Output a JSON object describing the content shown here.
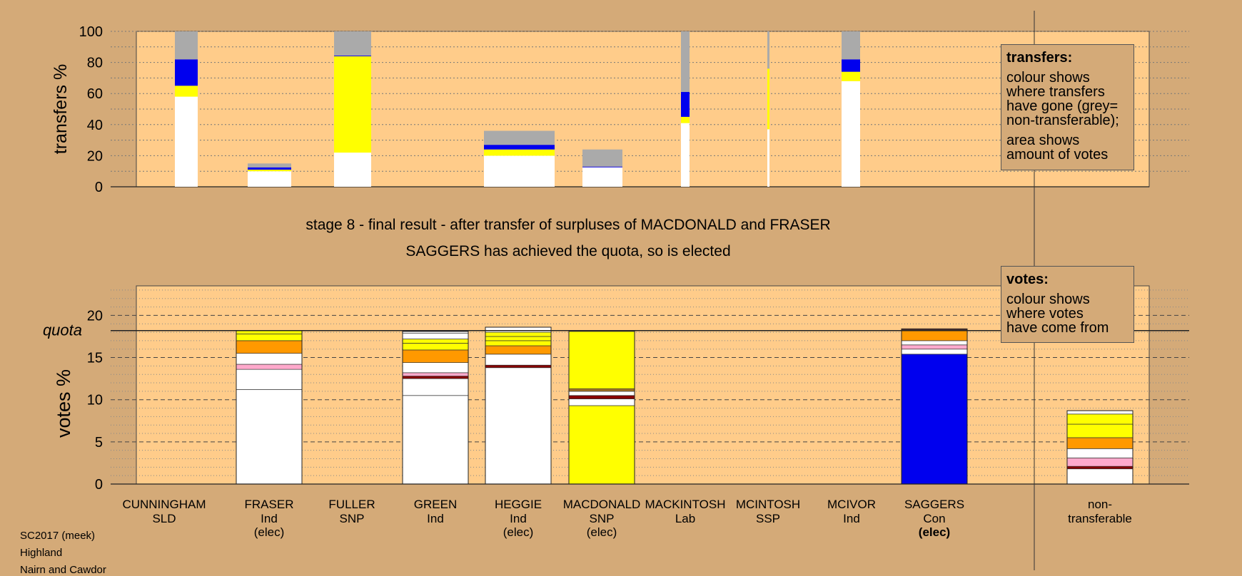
{
  "transfers_legend": {
    "title": "transfers:",
    "lines": [
      "colour shows",
      "where transfers",
      "have gone (grey=",
      "non-transferable);",
      "area shows",
      "amount of votes"
    ]
  },
  "votes_legend": {
    "title": "votes:",
    "lines": [
      "colour shows",
      "where votes",
      "have come from"
    ]
  },
  "stage_text": "stage 8 - final result - after transfer of surpluses of MACDONALD and FRASER",
  "elected_text": "SAGGERS has achieved the quota, so is elected",
  "quota_label": "quota",
  "footer": [
    "SC2017 (meek)",
    "Highland",
    "Nairn and Cawdor"
  ],
  "colors": {
    "white": "#ffffff",
    "yellow": "#ffff00",
    "blue": "#0000ee",
    "grey": "#aaaaaa",
    "orange": "#ff9900",
    "pink": "#ffaacc",
    "darkred": "#880000",
    "brown": "#aa7722",
    "plot_bg": "#ffcc8a",
    "page_bg": "#d4aa78"
  },
  "chart_data": [
    {
      "type": "bar",
      "name": "transfers",
      "ylabel": "transfers %",
      "ylim": [
        0,
        100
      ],
      "yticks": [
        0,
        20,
        40,
        60,
        80,
        100
      ],
      "bars": [
        {
          "segments": [
            {
              "color": "white",
              "v": 58
            },
            {
              "color": "yellow",
              "v": 7
            },
            {
              "color": "blue",
              "v": 17
            },
            {
              "color": "grey",
              "v": 18
            }
          ]
        },
        {
          "segments": [
            {
              "color": "white",
              "v": 10
            },
            {
              "color": "yellow",
              "v": 1
            },
            {
              "color": "blue",
              "v": 1.5
            },
            {
              "color": "grey",
              "v": 2.5
            }
          ]
        },
        {
          "segments": [
            {
              "color": "white",
              "v": 22
            },
            {
              "color": "yellow",
              "v": 62
            },
            {
              "color": "blue",
              "v": 0.5
            },
            {
              "color": "grey",
              "v": 15.5
            }
          ]
        },
        {
          "segments": [
            {
              "color": "white",
              "v": 20
            },
            {
              "color": "yellow",
              "v": 4
            },
            {
              "color": "blue",
              "v": 3
            },
            {
              "color": "grey",
              "v": 9
            }
          ]
        },
        {
          "segments": [
            {
              "color": "white",
              "v": 12.5
            },
            {
              "color": "blue",
              "v": 0.5
            },
            {
              "color": "grey",
              "v": 11
            }
          ]
        },
        {
          "segments": [
            {
              "color": "white",
              "v": 41
            },
            {
              "color": "yellow",
              "v": 4
            },
            {
              "color": "blue",
              "v": 16
            },
            {
              "color": "grey",
              "v": 39
            }
          ]
        },
        {
          "segments": [
            {
              "color": "white",
              "v": 37
            },
            {
              "color": "yellow",
              "v": 39
            },
            {
              "color": "grey",
              "v": 24
            }
          ]
        },
        {
          "segments": [
            {
              "color": "white",
              "v": 68
            },
            {
              "color": "yellow",
              "v": 6
            },
            {
              "color": "blue",
              "v": 8
            },
            {
              "color": "grey",
              "v": 18
            }
          ]
        }
      ]
    },
    {
      "type": "bar",
      "name": "votes",
      "ylabel": "votes %",
      "ylim": [
        0,
        23.5
      ],
      "yticks": [
        0,
        5,
        10,
        15,
        20
      ],
      "quota": 18.2,
      "categories": [
        {
          "name": "CUNNINGHAM",
          "party": "SLD",
          "status": ""
        },
        {
          "name": "FRASER",
          "party": "Ind",
          "status": "(elec)"
        },
        {
          "name": "FULLER",
          "party": "SNP",
          "status": ""
        },
        {
          "name": "GREEN",
          "party": "Ind",
          "status": ""
        },
        {
          "name": "HEGGIE",
          "party": "Ind",
          "status": "(elec)"
        },
        {
          "name": "MACDONALD",
          "party": "SNP",
          "status": "(elec)"
        },
        {
          "name": "MACKINTOSH",
          "party": "Lab",
          "status": ""
        },
        {
          "name": "MCINTOSH",
          "party": "SSP",
          "status": ""
        },
        {
          "name": "MCIVOR",
          "party": "Ind",
          "status": ""
        },
        {
          "name": "SAGGERS",
          "party": "Con",
          "status": "(elec)"
        },
        {
          "name": "non-",
          "party": "transferable",
          "status": ""
        }
      ],
      "bars": [
        {
          "segments": []
        },
        {
          "segments": [
            {
              "color": "white",
              "v": 11.2
            },
            {
              "color": "white",
              "v": 2.4
            },
            {
              "color": "pink",
              "v": 0.6
            },
            {
              "color": "white",
              "v": 1.3
            },
            {
              "color": "orange",
              "v": 1.5
            },
            {
              "color": "yellow",
              "v": 0.8
            },
            {
              "color": "yellow",
              "v": 0.4
            }
          ]
        },
        {
          "segments": []
        },
        {
          "segments": [
            {
              "color": "white",
              "v": 10.5
            },
            {
              "color": "white",
              "v": 2
            },
            {
              "color": "darkred",
              "v": 0.3
            },
            {
              "color": "pink",
              "v": 0.4
            },
            {
              "color": "white",
              "v": 1.2
            },
            {
              "color": "orange",
              "v": 1.5
            },
            {
              "color": "yellow",
              "v": 0.8
            },
            {
              "color": "yellow",
              "v": 0.5
            },
            {
              "color": "white",
              "v": 0.7
            },
            {
              "color": "white",
              "v": 0.2
            }
          ]
        },
        {
          "segments": [
            {
              "color": "white",
              "v": 13.8
            },
            {
              "color": "darkred",
              "v": 0.3
            },
            {
              "color": "white",
              "v": 1.3
            },
            {
              "color": "orange",
              "v": 1
            },
            {
              "color": "yellow",
              "v": 0.6
            },
            {
              "color": "yellow",
              "v": 0.5
            },
            {
              "color": "yellow",
              "v": 0.5
            },
            {
              "color": "white",
              "v": 0.6
            }
          ]
        },
        {
          "segments": [
            {
              "color": "yellow",
              "v": 9.3
            },
            {
              "color": "white",
              "v": 0.8
            },
            {
              "color": "darkred",
              "v": 0.4
            },
            {
              "color": "white",
              "v": 0.5
            },
            {
              "color": "brown",
              "v": 0.3
            },
            {
              "color": "yellow",
              "v": 6.8
            },
            {
              "color": "white",
              "v": 0.1
            }
          ]
        },
        {
          "segments": []
        },
        {
          "segments": []
        },
        {
          "segments": []
        },
        {
          "segments": [
            {
              "color": "blue",
              "v": 15.4
            },
            {
              "color": "white",
              "v": 0.6
            },
            {
              "color": "pink",
              "v": 0.5
            },
            {
              "color": "white",
              "v": 0.5
            },
            {
              "color": "orange",
              "v": 1.2
            },
            {
              "color": "white",
              "v": 0.1
            },
            {
              "color": "darkred",
              "v": 0.1
            }
          ]
        },
        {
          "segments": [
            {
              "color": "white",
              "v": 1.8
            },
            {
              "color": "darkred",
              "v": 0.3
            },
            {
              "color": "pink",
              "v": 1
            },
            {
              "color": "white",
              "v": 1.1
            },
            {
              "color": "orange",
              "v": 1.3
            },
            {
              "color": "yellow",
              "v": 1.6
            },
            {
              "color": "yellow",
              "v": 1.2
            },
            {
              "color": "white",
              "v": 0.4
            }
          ]
        }
      ]
    }
  ]
}
